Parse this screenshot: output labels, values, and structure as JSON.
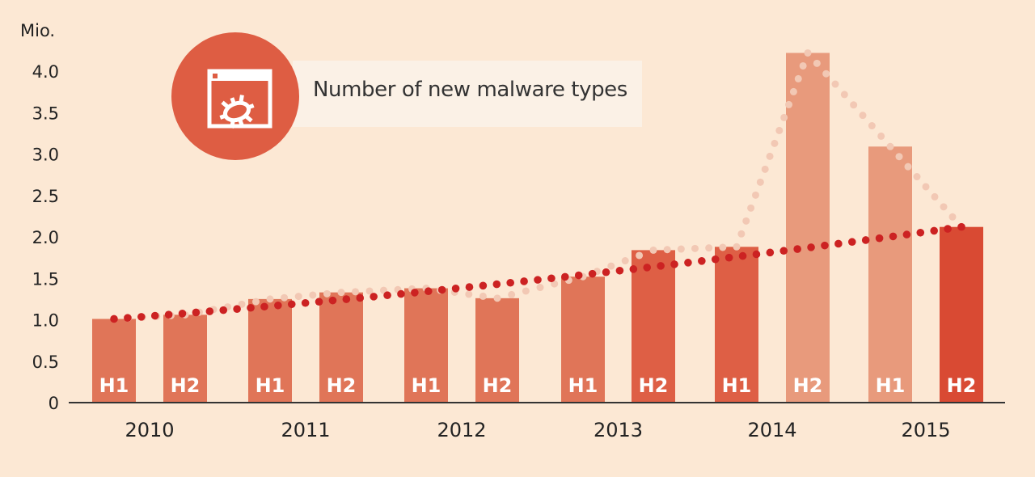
{
  "chart_data": {
    "type": "bar",
    "legend_label": "Number of new malware types",
    "y_unit_label": "Mio.",
    "ylim": [
      0,
      4.5
    ],
    "y_ticks": [
      "0",
      "0.5",
      "1.0",
      "1.5",
      "2.0",
      "2.5",
      "3.0",
      "3.5",
      "4.0"
    ],
    "years": [
      "2010",
      "2011",
      "2012",
      "2013",
      "2014",
      "2015"
    ],
    "bars": [
      {
        "year": "2010",
        "half": "H1",
        "value": 1.01,
        "color": "#e07558"
      },
      {
        "year": "2010",
        "half": "H2",
        "value": 1.06,
        "color": "#e07558"
      },
      {
        "year": "2011",
        "half": "H1",
        "value": 1.25,
        "color": "#e07558"
      },
      {
        "year": "2011",
        "half": "H2",
        "value": 1.33,
        "color": "#e07558"
      },
      {
        "year": "2012",
        "half": "H1",
        "value": 1.38,
        "color": "#e07558"
      },
      {
        "year": "2012",
        "half": "H2",
        "value": 1.26,
        "color": "#e07558"
      },
      {
        "year": "2013",
        "half": "H1",
        "value": 1.52,
        "color": "#e07558"
      },
      {
        "year": "2013",
        "half": "H2",
        "value": 1.84,
        "color": "#de5f45"
      },
      {
        "year": "2014",
        "half": "H1",
        "value": 1.88,
        "color": "#de5f45"
      },
      {
        "year": "2014",
        "half": "H2",
        "value": 4.22,
        "color": "#e89a7c"
      },
      {
        "year": "2015",
        "half": "H1",
        "value": 3.09,
        "color": "#e89a7c"
      },
      {
        "year": "2015",
        "half": "H2",
        "value": 2.12,
        "color": "#d94a33"
      }
    ],
    "trend_line": {
      "start": 1.01,
      "end": 2.12,
      "color": "#cc2222"
    },
    "bar_top_line": {
      "color": "#f2c8b4"
    },
    "axis_color": "#333333"
  }
}
